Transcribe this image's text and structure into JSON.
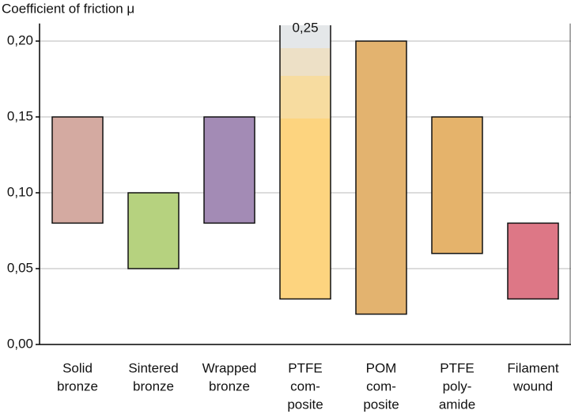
{
  "chart_data": {
    "type": "range-bar",
    "y_label": "Coefficient of friction μ",
    "categories": [
      [
        "Solid",
        "bronze"
      ],
      [
        "Sintered",
        "bronze"
      ],
      [
        "Wrapped",
        "bronze"
      ],
      [
        "PTFE",
        "com-",
        "posite"
      ],
      [
        "POM",
        "com-",
        "posite"
      ],
      [
        "PTFE",
        "poly-",
        "amide"
      ],
      [
        "Filament",
        "wound"
      ]
    ],
    "low": [
      0.08,
      0.05,
      0.08,
      0.03,
      0.02,
      0.06,
      0.03
    ],
    "high": [
      0.15,
      0.1,
      0.15,
      0.25,
      0.2,
      0.15,
      0.08
    ],
    "high_labels": [
      null,
      null,
      null,
      "0,25",
      null,
      null,
      null
    ],
    "colors": [
      "#d4aaa1",
      "#b6d27f",
      "#a38bb5",
      "#fdd47f",
      "#e3b36f",
      "#e5b36b",
      "#dd7786"
    ],
    "ylim": [
      0,
      0.21
    ],
    "yticks": [
      {
        "value": 0,
        "label": "0,00"
      },
      {
        "value": 0.05,
        "label": "0,05"
      },
      {
        "value": 0.1,
        "label": "0,10"
      },
      {
        "value": 0.15,
        "label": "0,15"
      },
      {
        "value": 0.2,
        "label": "0,20"
      }
    ],
    "grid": true
  }
}
